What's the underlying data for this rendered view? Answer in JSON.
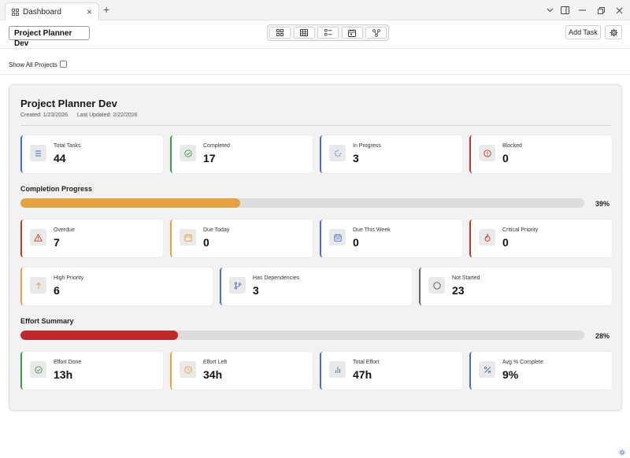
{
  "window": {
    "tab_title": "Dashboard",
    "tab_close": "×",
    "new_tab": "+"
  },
  "toolbar": {
    "project_name": "Project Planner Dev",
    "add_task_label": "Add Task",
    "views": [
      "grid-view-icon",
      "table-view-icon",
      "list-view-icon",
      "calendar-view-icon",
      "graph-view-icon"
    ]
  },
  "filter": {
    "show_all_label": "Show All Projects",
    "show_all_checked": false
  },
  "dashboard": {
    "title": "Project Planner Dev",
    "created": "Created: 1/23/2026",
    "updated": "Last Updated: 2/22/2026",
    "status_cards": [
      {
        "label": "Total Tasks",
        "value": "44",
        "icon": "list-icon",
        "color": "#4a6cd4"
      },
      {
        "label": "Completed",
        "value": "17",
        "icon": "check-circle-icon",
        "color": "#3f9a4a"
      },
      {
        "label": "In Progress",
        "value": "3",
        "icon": "spinner-icon",
        "color": "#4a6cd4"
      },
      {
        "label": "Blocked",
        "value": "0",
        "icon": "alert-circle-icon",
        "color": "#c0392b"
      }
    ],
    "completion": {
      "title": "Completion Progress",
      "percent_label": "39%",
      "fraction": 0.39,
      "color": "#e6a23c"
    },
    "due_cards": [
      {
        "label": "Overdue",
        "value": "7",
        "icon": "warning-triangle-icon",
        "color": "#c0392b"
      },
      {
        "label": "Due Today",
        "value": "0",
        "icon": "calendar-today-icon",
        "color": "#e6a23c"
      },
      {
        "label": "Due This Week",
        "value": "0",
        "icon": "calendar-week-icon",
        "color": "#4a6cd4"
      },
      {
        "label": "Critical Priority",
        "value": "0",
        "icon": "flame-icon",
        "color": "#c0392b"
      }
    ],
    "priority_cards": [
      {
        "label": "High Priority",
        "value": "6",
        "icon": "arrow-up-icon",
        "color": "#e6a23c"
      },
      {
        "label": "Has Dependencies",
        "value": "3",
        "icon": "git-branch-icon",
        "color": "#4a6cd4"
      },
      {
        "label": "Not Started",
        "value": "23",
        "icon": "circle-icon",
        "color": "#666666"
      }
    ],
    "effort": {
      "title": "Effort Summary",
      "percent_label": "28%",
      "fraction": 0.28,
      "color": "#c0282c"
    },
    "effort_cards": [
      {
        "label": "Effort Done",
        "value": "13h",
        "icon": "check-circle-icon",
        "color": "#3f9a4a"
      },
      {
        "label": "Effort Left",
        "value": "34h",
        "icon": "clock-icon",
        "color": "#e6a23c"
      },
      {
        "label": "Total Effort",
        "value": "47h",
        "icon": "bar-chart-icon",
        "color": "#4a6cd4"
      },
      {
        "label": "Avg % Complete",
        "value": "9%",
        "icon": "percent-icon",
        "color": "#4a6cd4"
      }
    ]
  }
}
